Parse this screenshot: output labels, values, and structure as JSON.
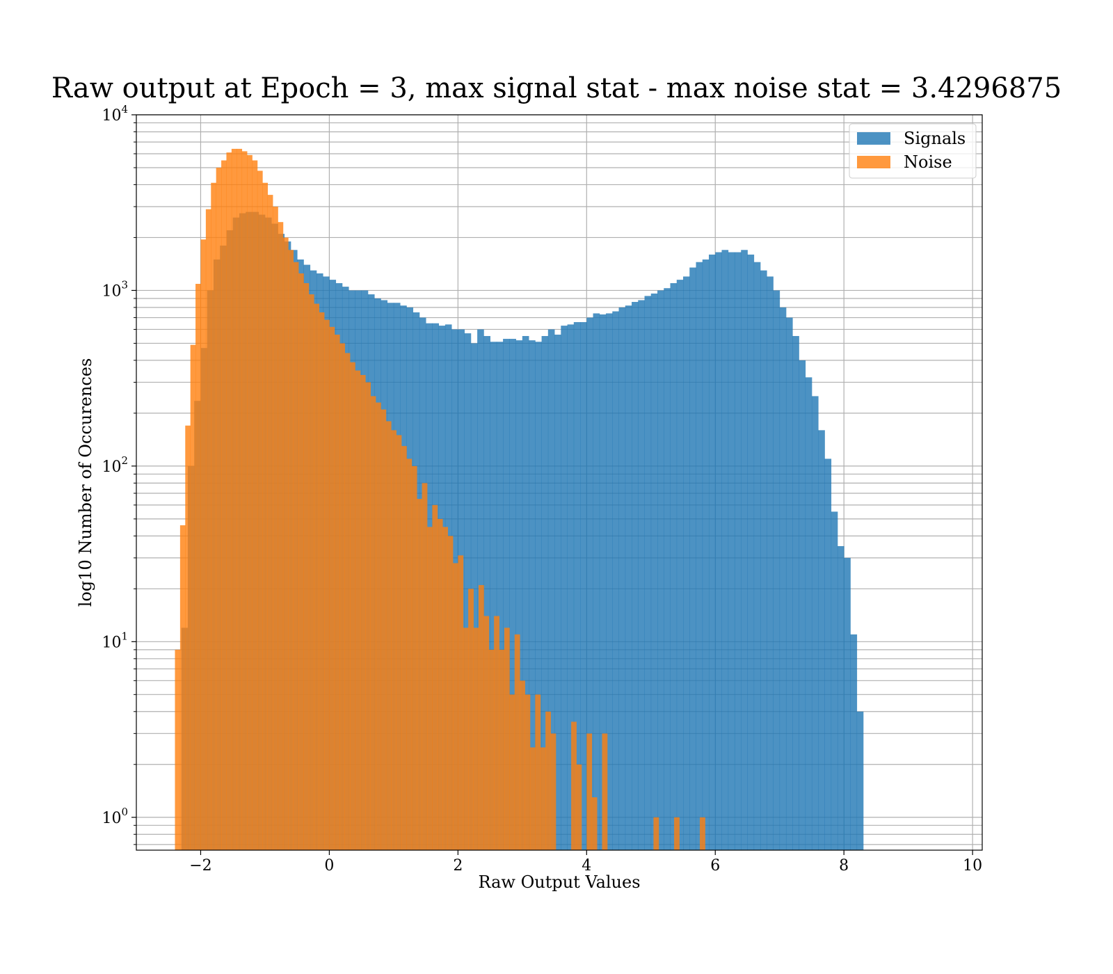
{
  "chart_data": {
    "type": "bar",
    "subtype": "histogram",
    "title": "Raw output at Epoch = 3, max signal stat - max noise stat = 3.4296875",
    "xlabel": "Raw Output Values",
    "ylabel": "log10 Number of Occurences",
    "x_scale": "linear",
    "y_scale": "log",
    "xlim": [
      -3,
      10.15
    ],
    "ylim": [
      0.65,
      10000
    ],
    "x_ticks": [
      -2,
      0,
      2,
      4,
      6,
      8,
      10
    ],
    "x_tick_labels": [
      "−2",
      "0",
      "2",
      "4",
      "6",
      "8",
      "10"
    ],
    "y_ticks": [
      1,
      10,
      100,
      1000,
      10000
    ],
    "y_tick_labels": [
      {
        "base": "10",
        "exp": "0"
      },
      {
        "base": "10",
        "exp": "1"
      },
      {
        "base": "10",
        "exp": "2"
      },
      {
        "base": "10",
        "exp": "3"
      },
      {
        "base": "10",
        "exp": "4"
      }
    ],
    "grid": true,
    "legend_position": "top-right",
    "series": [
      {
        "name": "Signals",
        "color": "#1f77b4",
        "opacity": 0.8,
        "x_start": -2.3,
        "bin_width": 0.1,
        "values": [
          12,
          100,
          235,
          470,
          1000,
          1500,
          1800,
          2200,
          2600,
          2750,
          2800,
          2800,
          2700,
          2600,
          2400,
          2100,
          1900,
          1700,
          1500,
          1400,
          1300,
          1250,
          1200,
          1150,
          1100,
          1050,
          1000,
          1000,
          1000,
          950,
          900,
          880,
          850,
          850,
          820,
          800,
          750,
          700,
          650,
          650,
          630,
          640,
          600,
          600,
          570,
          500,
          600,
          550,
          510,
          510,
          530,
          530,
          520,
          550,
          520,
          510,
          550,
          600,
          560,
          630,
          640,
          660,
          660,
          700,
          740,
          730,
          740,
          760,
          800,
          820,
          860,
          880,
          930,
          960,
          1000,
          1030,
          1100,
          1150,
          1200,
          1350,
          1450,
          1500,
          1600,
          1650,
          1700,
          1650,
          1650,
          1700,
          1600,
          1450,
          1300,
          1200,
          1000,
          800,
          700,
          550,
          400,
          320,
          250,
          160,
          110,
          55,
          35,
          30,
          11,
          4
        ]
      },
      {
        "name": "Noise",
        "color": "#ff7f0e",
        "opacity": 0.8,
        "x_start": -2.4,
        "bin_width": 0.08,
        "values": [
          9,
          46,
          170,
          490,
          1090,
          1950,
          2900,
          4100,
          5000,
          5500,
          6100,
          6400,
          6400,
          6200,
          5900,
          5500,
          4800,
          4100,
          3500,
          3000,
          2450,
          2000,
          1700,
          1450,
          1250,
          1100,
          950,
          840,
          750,
          680,
          620,
          560,
          500,
          440,
          390,
          350,
          330,
          300,
          250,
          230,
          210,
          180,
          160,
          150,
          130,
          110,
          100,
          65,
          80,
          45,
          60,
          50,
          45,
          40,
          28,
          31,
          12,
          20,
          12,
          21,
          14,
          9,
          14,
          9,
          12,
          5,
          11,
          6,
          5,
          2.5,
          5,
          2.5,
          4,
          3,
          0.5,
          0.5,
          0.5,
          3.5,
          2,
          0.5,
          3,
          1.3,
          0.5,
          3,
          0.5,
          0,
          0,
          0.5,
          0,
          0,
          0,
          0,
          0,
          1,
          0,
          0,
          0,
          1,
          0,
          0,
          0,
          0,
          1
        ]
      }
    ]
  }
}
